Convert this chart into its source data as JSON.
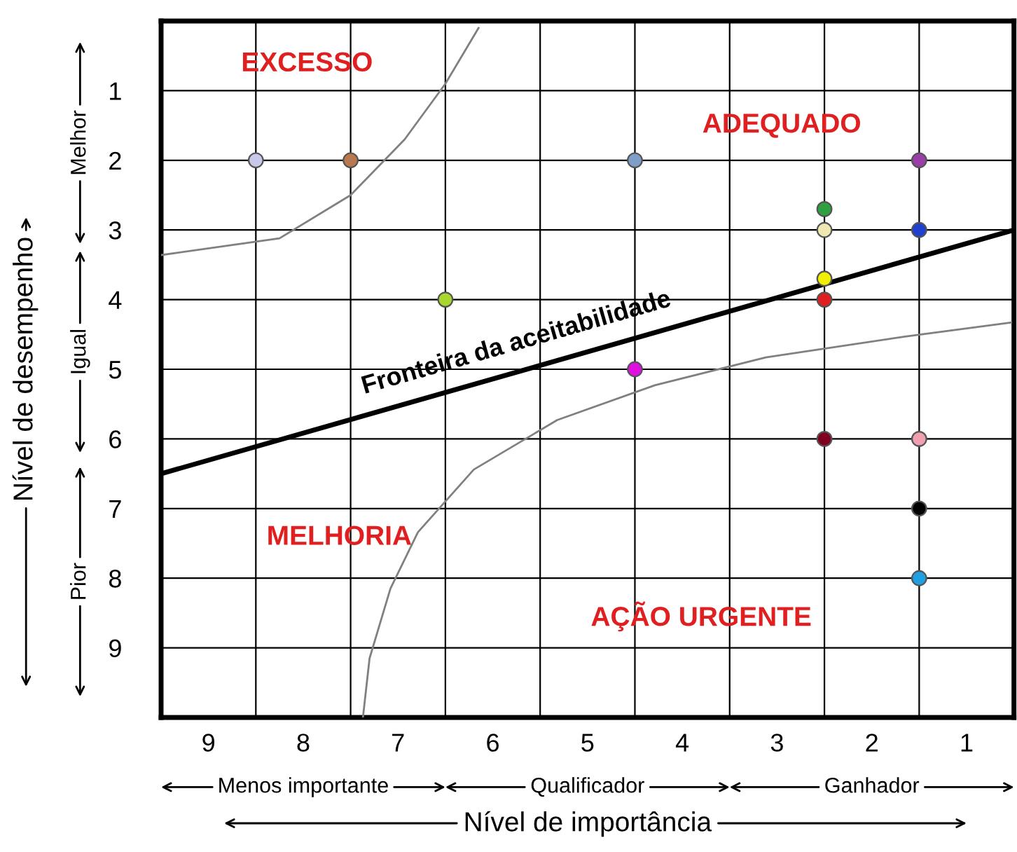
{
  "chart_data": {
    "type": "scatter",
    "xlabel": "Nível de importância",
    "ylabel": "Nível de desempenho",
    "xlim": [
      9.5,
      0.5
    ],
    "ylim": [
      10,
      0
    ],
    "xticks": [
      {
        "value": 9,
        "label": "9"
      },
      {
        "value": 8,
        "label": "8"
      },
      {
        "value": 7,
        "label": "7"
      },
      {
        "value": 6,
        "label": "6"
      },
      {
        "value": 5,
        "label": "5"
      },
      {
        "value": 4,
        "label": "4"
      },
      {
        "value": 3,
        "label": "3"
      },
      {
        "value": 2,
        "label": "2"
      },
      {
        "value": 1,
        "label": "1"
      },
      {
        "value": 8.5,
        "label": null
      },
      {
        "value": 7.5,
        "label": null
      },
      {
        "value": 6.5,
        "label": null
      },
      {
        "value": 5.5,
        "label": null
      },
      {
        "value": 4.5,
        "label": null
      },
      {
        "value": 3.5,
        "label": null
      },
      {
        "value": 2.5,
        "label": null
      },
      {
        "value": 1.5,
        "label": null
      }
    ],
    "yticks": [
      1,
      2,
      3,
      4,
      5,
      6,
      7,
      8,
      9
    ],
    "grid": true,
    "series": [
      {
        "marker": "circle",
        "x": [
          8.5,
          7.5,
          4.5,
          1.5,
          6.5,
          4.5,
          2.5,
          2.5,
          1.5,
          2.5,
          2.5,
          2.5,
          1.5,
          1.5,
          1.5
        ],
        "values": [
          2,
          2,
          2,
          2,
          4,
          5,
          2.7,
          3,
          3,
          3.7,
          4,
          6,
          6,
          7,
          8
        ],
        "colors": [
          "#c8c8e8",
          "#b87850",
          "#7f9fc8",
          "#9a3fa8",
          "#a8d830",
          "#e010e0",
          "#2ea040",
          "#efe8b0",
          "#2040d0",
          "#f0f000",
          "#e02020",
          "#800020",
          "#f0a0b0",
          "#000000",
          "#20a0e0"
        ]
      },
      {
        "type": "line",
        "color": "#000000",
        "x": [
          9.5,
          0.5
        ],
        "values": [
          6.5,
          3.0
        ]
      },
      {
        "type": "line",
        "color": "#808080",
        "x": [
          9.5,
          8.25,
          7.5,
          6.93,
          6.5,
          6.15
        ],
        "values": [
          3.36,
          3.12,
          2.5,
          1.7,
          0.9,
          0.1
        ]
      },
      {
        "type": "line",
        "color": "#808080",
        "x": [
          7.37,
          7.3,
          7.08,
          6.79,
          6.2,
          5.32,
          4.29,
          3.12,
          1.65,
          0.53
        ],
        "values": [
          10,
          9.15,
          8.15,
          7.34,
          6.44,
          5.73,
          5.23,
          4.83,
          4.53,
          4.33
        ]
      }
    ],
    "annotations": [
      "Menos importante",
      "Qualificador",
      "Ganhador",
      "Melhor",
      "Igual",
      "Pior",
      "EXCESSO",
      "ADEQUADO",
      "MELHORIA",
      "AÇÃO URGENTE",
      "Fronteira da aceitabilidade"
    ]
  }
}
